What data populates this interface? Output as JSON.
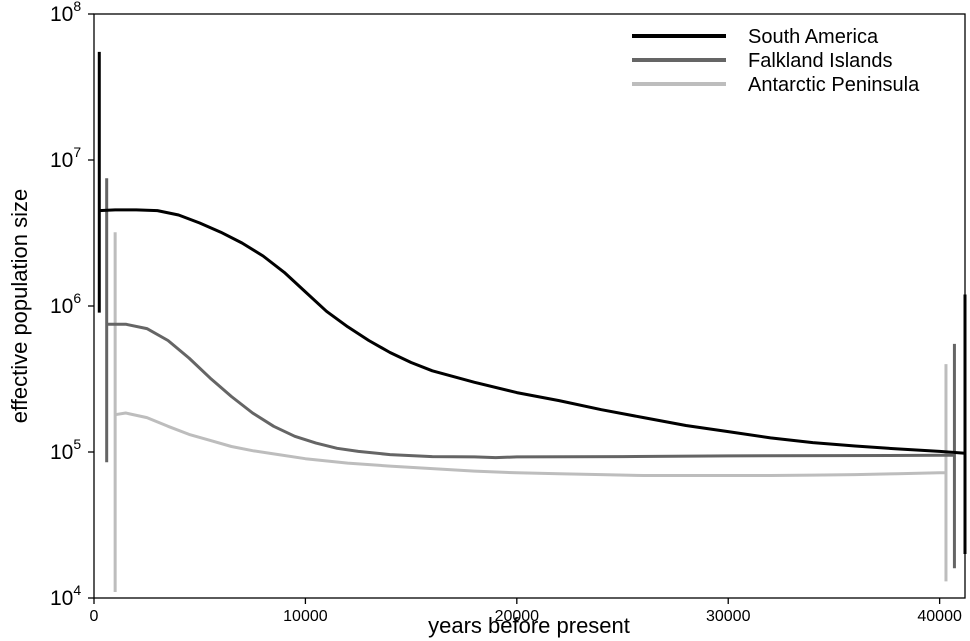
{
  "chart_data": {
    "type": "line",
    "title": "",
    "xlabel": "years before present",
    "ylabel": "effective population size",
    "xlim": [
      0,
      41200
    ],
    "ylim": [
      10000,
      100000000
    ],
    "yscale": "log",
    "grid": false,
    "legend_position": "top-right",
    "x_ticks": [
      {
        "value": 0,
        "label": "0"
      },
      {
        "value": 10000,
        "label": "10000"
      },
      {
        "value": 20000,
        "label": "20000"
      },
      {
        "value": 30000,
        "label": "30000"
      },
      {
        "value": 40000,
        "label": "40000"
      }
    ],
    "y_ticks": [
      {
        "value": 10000,
        "base": "10",
        "exp": "4"
      },
      {
        "value": 100000,
        "base": "10",
        "exp": "5"
      },
      {
        "value": 1000000,
        "base": "10",
        "exp": "6"
      },
      {
        "value": 10000000,
        "base": "10",
        "exp": "7"
      },
      {
        "value": 100000000,
        "base": "10",
        "exp": "8"
      }
    ],
    "series": [
      {
        "name": "South America",
        "color": "#000000",
        "x": [
          250,
          1000,
          2000,
          3000,
          4000,
          5000,
          6000,
          7000,
          8000,
          9000,
          10000,
          11000,
          12000,
          13000,
          14000,
          15000,
          16000,
          18000,
          20000,
          22000,
          24000,
          26000,
          28000,
          30000,
          32000,
          34000,
          36000,
          38000,
          40000,
          41200
        ],
        "y": [
          4500000,
          4550000,
          4550000,
          4500000,
          4200000,
          3700000,
          3200000,
          2700000,
          2200000,
          1700000,
          1250000,
          920000,
          720000,
          580000,
          480000,
          410000,
          360000,
          300000,
          255000,
          225000,
          195000,
          172000,
          152000,
          138000,
          125000,
          116000,
          110000,
          105000,
          101000,
          98000
        ],
        "ci_left": {
          "x": 250,
          "low": 900000,
          "high": 55000000
        },
        "ci_right": {
          "x": 41200,
          "low": 20000,
          "high": 1200000
        }
      },
      {
        "name": "Falkland Islands",
        "color": "#656565",
        "x": [
          600,
          1500,
          2500,
          3500,
          4500,
          5500,
          6500,
          7500,
          8500,
          9500,
          10500,
          11500,
          12500,
          14000,
          16000,
          18000,
          19000,
          20000,
          25000,
          30000,
          35000,
          40000,
          40700
        ],
        "y": [
          750000,
          750000,
          700000,
          580000,
          440000,
          320000,
          240000,
          185000,
          150000,
          128000,
          115000,
          106000,
          101000,
          96000,
          93000,
          92500,
          91500,
          92500,
          93000,
          94000,
          94500,
          95000,
          95000
        ],
        "ci_left": {
          "x": 600,
          "low": 85000,
          "high": 7500000
        },
        "ci_right": {
          "x": 40700,
          "low": 16000,
          "high": 550000
        }
      },
      {
        "name": "Antarctic Peninsula",
        "color": "#bdbdbd",
        "x": [
          1000,
          1500,
          2500,
          3500,
          4500,
          5500,
          6500,
          7500,
          8500,
          10000,
          12000,
          14000,
          16000,
          18000,
          20000,
          22000,
          24000,
          26000,
          28000,
          30000,
          32000,
          34000,
          36000,
          38000,
          40000,
          40300
        ],
        "y": [
          180000,
          185000,
          172000,
          150000,
          132000,
          120000,
          109000,
          102000,
          97000,
          90000,
          84000,
          80000,
          77000,
          74000,
          72000,
          71000,
          70000,
          69000,
          69000,
          69000,
          69000,
          69500,
          70000,
          71000,
          72000,
          72000
        ],
        "ci_left": {
          "x": 1000,
          "low": 11000,
          "high": 3200000
        },
        "ci_right": {
          "x": 40300,
          "low": 13000,
          "high": 400000
        }
      }
    ]
  }
}
